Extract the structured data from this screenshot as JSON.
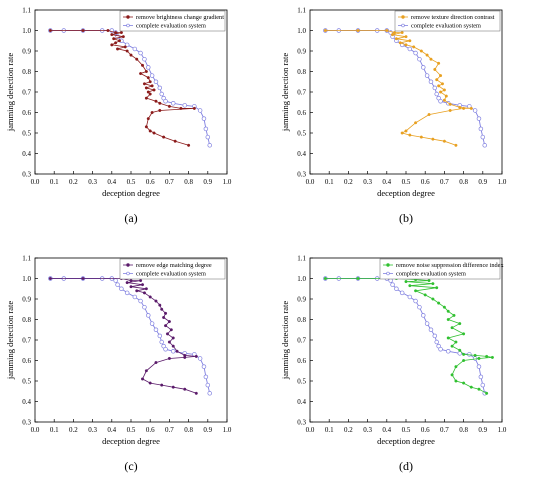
{
  "chart_data": [
    {
      "type": "line",
      "panel_label": "(a)",
      "xlabel": "deception degree",
      "ylabel": "jamming detection rate",
      "xlim": [
        0.0,
        1.0
      ],
      "ylim": [
        0.3,
        1.1
      ],
      "xticks": [
        "0.0",
        "0.1",
        "0.2",
        "0.3",
        "0.4",
        "0.5",
        "0.6",
        "0.7",
        "0.8",
        "0.9",
        "1.0"
      ],
      "yticks": [
        "0.3",
        "0.4",
        "0.5",
        "0.6",
        "0.7",
        "0.8",
        "0.9",
        "1.0",
        "1.1"
      ],
      "legend_position": "top-right",
      "series": [
        {
          "name": "remove brightness change gradient",
          "color": "#8b1a1a",
          "x": [
            0.08,
            0.25,
            0.38,
            0.42,
            0.45,
            0.4,
            0.46,
            0.41,
            0.44,
            0.42,
            0.4,
            0.47,
            0.43,
            0.48,
            0.5,
            0.53,
            0.56,
            0.58,
            0.55,
            0.59,
            0.6,
            0.57,
            0.61,
            0.58,
            0.62,
            0.59,
            0.6,
            0.58,
            0.63,
            0.65,
            0.7,
            0.76,
            0.83,
            0.65,
            0.61,
            0.59,
            0.58,
            0.6,
            0.62,
            0.67,
            0.73,
            0.8
          ],
          "y": [
            1.0,
            1.0,
            1.0,
            0.99,
            0.99,
            0.98,
            0.97,
            0.96,
            0.95,
            0.94,
            0.93,
            0.92,
            0.91,
            0.9,
            0.88,
            0.86,
            0.83,
            0.8,
            0.79,
            0.77,
            0.75,
            0.74,
            0.73,
            0.72,
            0.71,
            0.7,
            0.69,
            0.67,
            0.655,
            0.645,
            0.63,
            0.62,
            0.62,
            0.61,
            0.6,
            0.57,
            0.53,
            0.51,
            0.5,
            0.48,
            0.46,
            0.44
          ]
        },
        {
          "name": "complete evaluation system",
          "color": "#8080e0",
          "x": [
            0.08,
            0.15,
            0.25,
            0.35,
            0.4,
            0.42,
            0.43,
            0.45,
            0.48,
            0.52,
            0.55,
            0.57,
            0.59,
            0.61,
            0.63,
            0.65,
            0.66,
            0.67,
            0.68,
            0.72,
            0.78,
            0.83,
            0.86,
            0.88,
            0.89,
            0.9,
            0.91
          ],
          "y": [
            1.0,
            1.0,
            1.0,
            1.0,
            1.0,
            0.99,
            0.97,
            0.95,
            0.93,
            0.91,
            0.89,
            0.86,
            0.82,
            0.78,
            0.75,
            0.72,
            0.69,
            0.67,
            0.655,
            0.645,
            0.635,
            0.63,
            0.61,
            0.57,
            0.52,
            0.48,
            0.44
          ]
        }
      ]
    },
    {
      "type": "line",
      "panel_label": "(b)",
      "xlabel": "deception degree",
      "ylabel": "jamming detection rate",
      "xlim": [
        0.0,
        1.0
      ],
      "ylim": [
        0.3,
        1.1
      ],
      "xticks": [
        "0.0",
        "0.1",
        "0.2",
        "0.3",
        "0.4",
        "0.5",
        "0.6",
        "0.7",
        "0.8",
        "0.9",
        "1.0"
      ],
      "yticks": [
        "0.3",
        "0.4",
        "0.5",
        "0.6",
        "0.7",
        "0.8",
        "0.9",
        "1.0",
        "1.1"
      ],
      "legend_position": "top-right",
      "series": [
        {
          "name": "remove texture direction contrast",
          "color": "#e8a020",
          "x": [
            0.08,
            0.25,
            0.4,
            0.44,
            0.48,
            0.43,
            0.5,
            0.45,
            0.52,
            0.47,
            0.5,
            0.54,
            0.58,
            0.61,
            0.63,
            0.67,
            0.65,
            0.68,
            0.66,
            0.69,
            0.67,
            0.7,
            0.68,
            0.71,
            0.7,
            0.73,
            0.78,
            0.84,
            0.8,
            0.73,
            0.62,
            0.55,
            0.5,
            0.48,
            0.52,
            0.58,
            0.64,
            0.7,
            0.76
          ],
          "y": [
            1.0,
            1.0,
            1.0,
            0.99,
            0.99,
            0.98,
            0.97,
            0.96,
            0.95,
            0.94,
            0.93,
            0.92,
            0.9,
            0.88,
            0.86,
            0.84,
            0.81,
            0.78,
            0.76,
            0.74,
            0.73,
            0.71,
            0.7,
            0.68,
            0.66,
            0.64,
            0.625,
            0.62,
            0.62,
            0.61,
            0.59,
            0.55,
            0.51,
            0.5,
            0.49,
            0.48,
            0.47,
            0.46,
            0.44
          ]
        },
        {
          "name": "complete evaluation system",
          "color": "#8080e0",
          "x": [
            0.08,
            0.15,
            0.25,
            0.35,
            0.4,
            0.42,
            0.43,
            0.45,
            0.48,
            0.52,
            0.55,
            0.57,
            0.59,
            0.61,
            0.63,
            0.65,
            0.66,
            0.67,
            0.68,
            0.72,
            0.78,
            0.83,
            0.86,
            0.88,
            0.89,
            0.9,
            0.91
          ],
          "y": [
            1.0,
            1.0,
            1.0,
            1.0,
            1.0,
            0.99,
            0.97,
            0.95,
            0.93,
            0.91,
            0.89,
            0.86,
            0.82,
            0.78,
            0.75,
            0.72,
            0.69,
            0.67,
            0.655,
            0.645,
            0.635,
            0.63,
            0.61,
            0.57,
            0.52,
            0.48,
            0.44
          ]
        }
      ]
    },
    {
      "type": "line",
      "panel_label": "(c)",
      "xlabel": "deception degree",
      "ylabel": "jamming detection rate",
      "xlim": [
        0.0,
        1.0
      ],
      "ylim": [
        0.3,
        1.1
      ],
      "xticks": [
        "0.0",
        "0.1",
        "0.2",
        "0.3",
        "0.4",
        "0.5",
        "0.6",
        "0.7",
        "0.8",
        "0.9",
        "1.0"
      ],
      "yticks": [
        "0.3",
        "0.4",
        "0.5",
        "0.6",
        "0.7",
        "0.8",
        "0.9",
        "1.0",
        "1.1"
      ],
      "legend_position": "top-right",
      "series": [
        {
          "name": "remove edge matching degree",
          "color": "#5a1a6a",
          "x": [
            0.08,
            0.25,
            0.45,
            0.5,
            0.55,
            0.48,
            0.56,
            0.5,
            0.58,
            0.53,
            0.57,
            0.6,
            0.63,
            0.65,
            0.66,
            0.68,
            0.67,
            0.7,
            0.68,
            0.71,
            0.69,
            0.72,
            0.7,
            0.72,
            0.74,
            0.78,
            0.84,
            0.78,
            0.7,
            0.63,
            0.58,
            0.56,
            0.6,
            0.66,
            0.72,
            0.78,
            0.84
          ],
          "y": [
            1.0,
            1.0,
            1.0,
            0.99,
            0.99,
            0.98,
            0.97,
            0.96,
            0.95,
            0.94,
            0.93,
            0.91,
            0.89,
            0.87,
            0.85,
            0.83,
            0.81,
            0.79,
            0.77,
            0.75,
            0.73,
            0.71,
            0.69,
            0.67,
            0.645,
            0.625,
            0.62,
            0.615,
            0.61,
            0.59,
            0.55,
            0.51,
            0.49,
            0.48,
            0.47,
            0.46,
            0.44
          ]
        },
        {
          "name": "complete evaluation system",
          "color": "#8080e0",
          "x": [
            0.08,
            0.15,
            0.25,
            0.35,
            0.4,
            0.42,
            0.43,
            0.45,
            0.48,
            0.52,
            0.55,
            0.57,
            0.59,
            0.61,
            0.63,
            0.65,
            0.66,
            0.67,
            0.68,
            0.72,
            0.78,
            0.83,
            0.86,
            0.88,
            0.89,
            0.9,
            0.91
          ],
          "y": [
            1.0,
            1.0,
            1.0,
            1.0,
            1.0,
            0.99,
            0.97,
            0.95,
            0.93,
            0.91,
            0.89,
            0.86,
            0.82,
            0.78,
            0.75,
            0.72,
            0.69,
            0.67,
            0.655,
            0.645,
            0.635,
            0.63,
            0.61,
            0.57,
            0.52,
            0.48,
            0.44
          ]
        }
      ]
    },
    {
      "type": "line",
      "panel_label": "(d)",
      "xlabel": "deception degree",
      "ylabel": "jamming detection rate",
      "xlim": [
        0.0,
        1.0
      ],
      "ylim": [
        0.3,
        1.1
      ],
      "xticks": [
        "0.0",
        "0.1",
        "0.2",
        "0.3",
        "0.4",
        "0.5",
        "0.6",
        "0.7",
        "0.8",
        "0.9",
        "1.0"
      ],
      "yticks": [
        "0.3",
        "0.4",
        "0.5",
        "0.6",
        "0.7",
        "0.8",
        "0.9",
        "1.0",
        "1.1"
      ],
      "legend_position": "top-right",
      "series": [
        {
          "name": "remove noise suppression difference index",
          "color": "#30c030",
          "x": [
            0.08,
            0.25,
            0.45,
            0.55,
            0.62,
            0.5,
            0.64,
            0.52,
            0.66,
            0.55,
            0.6,
            0.64,
            0.67,
            0.7,
            0.72,
            0.75,
            0.72,
            0.78,
            0.74,
            0.8,
            0.72,
            0.76,
            0.74,
            0.78,
            0.8,
            0.86,
            0.92,
            0.95,
            0.88,
            0.8,
            0.76,
            0.74,
            0.76,
            0.8,
            0.84,
            0.88,
            0.92
          ],
          "y": [
            1.0,
            1.0,
            1.0,
            0.995,
            0.99,
            0.985,
            0.975,
            0.965,
            0.955,
            0.94,
            0.92,
            0.9,
            0.88,
            0.86,
            0.84,
            0.82,
            0.8,
            0.78,
            0.76,
            0.73,
            0.71,
            0.69,
            0.67,
            0.65,
            0.63,
            0.625,
            0.62,
            0.615,
            0.61,
            0.6,
            0.57,
            0.53,
            0.5,
            0.49,
            0.47,
            0.46,
            0.44
          ]
        },
        {
          "name": "complete evaluation system",
          "color": "#8080e0",
          "x": [
            0.08,
            0.15,
            0.25,
            0.35,
            0.4,
            0.42,
            0.43,
            0.45,
            0.48,
            0.52,
            0.55,
            0.57,
            0.59,
            0.61,
            0.63,
            0.65,
            0.66,
            0.67,
            0.68,
            0.72,
            0.78,
            0.83,
            0.86,
            0.88,
            0.89,
            0.9,
            0.91
          ],
          "y": [
            1.0,
            1.0,
            1.0,
            1.0,
            1.0,
            0.99,
            0.97,
            0.95,
            0.93,
            0.91,
            0.89,
            0.86,
            0.82,
            0.78,
            0.75,
            0.72,
            0.69,
            0.67,
            0.655,
            0.645,
            0.635,
            0.63,
            0.61,
            0.57,
            0.52,
            0.48,
            0.44
          ]
        }
      ]
    }
  ]
}
